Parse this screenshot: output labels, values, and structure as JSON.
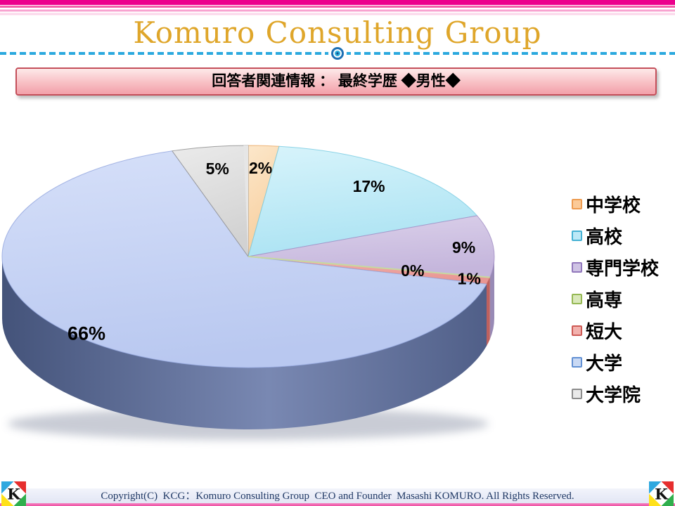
{
  "slide": {
    "brand_title": "Komuro Consulting Group",
    "title_bar": "回答者関連情報 ： 最終学歴 ◆男性◆",
    "footer_copyright": "Copyright(C)  KCG：Komuro Consulting Group  CEO and Founder  Masashi KOMURO. All Rights Reserved.",
    "logo_letter": "K"
  },
  "theme": {
    "brand_gold": "#DFA62A",
    "stripe_magenta": "#EC008C",
    "divider_cyan": "#2BA9DE",
    "title_bar_border": "#C44F5A",
    "footer_text_color": "#1F3864",
    "logo_colors": {
      "top_left": "#2FA8DF",
      "top_right": "#E62E2E",
      "bottom_left": "#FFE11A",
      "bottom_right": "#2FAF4C"
    }
  },
  "chart_data": {
    "type": "pie",
    "style": "3d",
    "unit": "%",
    "start_angle_deg": 0,
    "direction": "clockwise",
    "legend_position": "right",
    "slices": [
      {
        "label": "中学校",
        "value": 2,
        "pct_label": "2%",
        "fill_light": "#FCE7CA",
        "fill": "#F7CE9D",
        "stroke": "#EBAA67",
        "legend_fill": "#FBCA98",
        "legend_border": "#ED9B50",
        "label_r": 0.8
      },
      {
        "label": "高校",
        "value": 17,
        "pct_label": "17%",
        "fill_light": "#D8F4FB",
        "fill": "#ACE3F3",
        "stroke": "#7BCCE3",
        "legend_fill": "#BCE9F7",
        "legend_border": "#46B2D4",
        "label_r": 0.8
      },
      {
        "label": "専門学校",
        "value": 9,
        "pct_label": "9%",
        "fill_light": "#DCD2EB",
        "fill": "#C5B6DC",
        "stroke": "#A391C6",
        "legend_fill": "#CFC3E4",
        "legend_border": "#9278BC",
        "label_r": 0.88,
        "side": "#988AB5"
      },
      {
        "label": "高専",
        "value": 0,
        "pct_label": "0%",
        "fill_light": "#DCE9C1",
        "fill": "#C6D9A0",
        "stroke": "#ADC47E",
        "legend_fill": "#D9E8BA",
        "legend_border": "#95B853",
        "label_r": 0.68
      },
      {
        "label": "短大",
        "value": 1,
        "pct_label": "1%",
        "fill_light": "#F3B3AF",
        "fill": "#E89693",
        "stroke": "#CC6965",
        "legend_fill": "#F2B1AD",
        "legend_border": "#CD5A55",
        "label_r": 0.92,
        "side": "#BD615F"
      },
      {
        "label": "大学",
        "value": 66,
        "pct_label": "66%",
        "fill_light": "#D6E0F9",
        "fill": "#B9C8F0",
        "stroke": "#96A9DF",
        "legend_fill": "#C9D9F4",
        "legend_border": "#6290D3",
        "label_r": 0.96,
        "side_grad": [
          "#44537A",
          "#7988B2",
          "#505F88"
        ]
      },
      {
        "label": "大学院",
        "value": 5,
        "pct_label": "5%",
        "fill_light": "#EBEBEB",
        "fill": "#D2D2D2",
        "stroke": "#909090",
        "legend_fill": "#E9E9E9",
        "legend_border": "#8C8C8C",
        "label_r": 0.8
      }
    ]
  }
}
